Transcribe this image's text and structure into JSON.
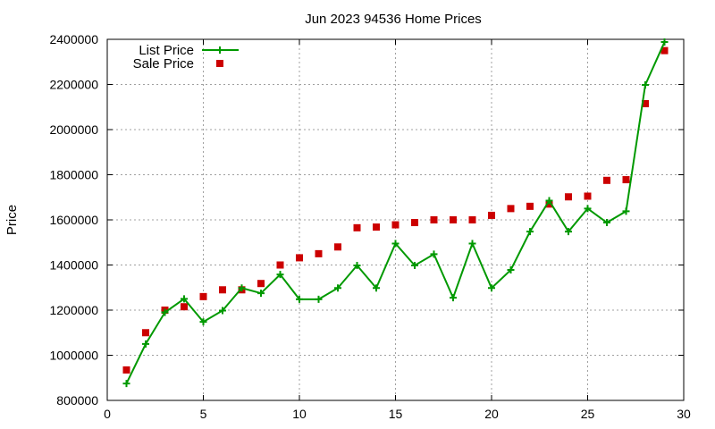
{
  "chart_data": {
    "type": "line",
    "title": "Jun 2023 94536 Home Prices",
    "xlabel": "",
    "ylabel": "Price",
    "xlim": [
      0,
      30
    ],
    "ylim": [
      800000,
      2400000
    ],
    "xticks": [
      0,
      5,
      10,
      15,
      20,
      25,
      30
    ],
    "yticks": [
      800000,
      1000000,
      1200000,
      1400000,
      1600000,
      1800000,
      2000000,
      2200000,
      2400000
    ],
    "grid": true,
    "legend_position": "top-left",
    "series": [
      {
        "name": "List Price",
        "style": "line-with-plus-markers",
        "color": "#009900",
        "x": [
          1,
          2,
          3,
          4,
          5,
          6,
          7,
          8,
          9,
          10,
          11,
          12,
          13,
          14,
          15,
          16,
          17,
          18,
          19,
          20,
          21,
          22,
          23,
          24,
          25,
          26,
          27,
          28,
          29
        ],
        "values": [
          875000,
          1050000,
          1190000,
          1250000,
          1148000,
          1198000,
          1298000,
          1275000,
          1358000,
          1248000,
          1248000,
          1298000,
          1398000,
          1298000,
          1495000,
          1398000,
          1448000,
          1255000,
          1495000,
          1298000,
          1378000,
          1548000,
          1685000,
          1548000,
          1650000,
          1588000,
          1638000,
          2198000,
          2388000
        ]
      },
      {
        "name": "Sale Price",
        "style": "square-markers",
        "color": "#cc0000",
        "x": [
          1,
          2,
          3,
          4,
          5,
          6,
          7,
          8,
          9,
          10,
          11,
          12,
          13,
          14,
          15,
          16,
          17,
          18,
          19,
          20,
          21,
          22,
          23,
          24,
          25,
          26,
          27,
          28,
          29
        ],
        "values": [
          935000,
          1100000,
          1200000,
          1215000,
          1260000,
          1290000,
          1290000,
          1318000,
          1400000,
          1432000,
          1450000,
          1480000,
          1565000,
          1568000,
          1578000,
          1588000,
          1600000,
          1600000,
          1600000,
          1620000,
          1650000,
          1660000,
          1670000,
          1702000,
          1705000,
          1775000,
          1778000,
          2115000,
          2350000
        ]
      }
    ]
  }
}
